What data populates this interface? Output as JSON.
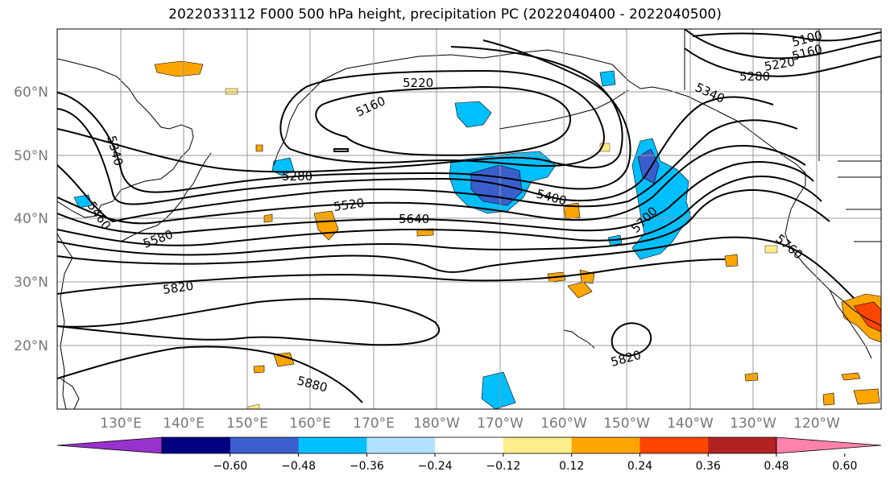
{
  "title": "2022033112 F000 500 hPa height, precipitation PC (2022040400 - 2022040500)",
  "lat_labels": [
    "60°N",
    "50°N",
    "40°N",
    "30°N",
    "20°N"
  ],
  "lon_labels": [
    "130°E",
    "140°E",
    "150°E",
    "160°E",
    "170°E",
    "180°W",
    "170°W",
    "160°W",
    "150°W",
    "140°W",
    "130°W",
    "120°W"
  ],
  "contour_labels": [
    "5100",
    "5160",
    "5160",
    "5220",
    "5220",
    "5280",
    "5280",
    "5340",
    "5340",
    "5400",
    "5460",
    "5520",
    "5580",
    "5640",
    "5700",
    "5760",
    "5820",
    "5820",
    "5880"
  ],
  "colorbar": {
    "ticks": [
      "−0.60",
      "−0.48",
      "−0.36",
      "−0.24",
      "−0.12",
      "0.12",
      "0.24",
      "0.36",
      "0.48",
      "0.60"
    ],
    "colors": [
      "#9932cc",
      "#000080",
      "#3a5fcd",
      "#00bfff",
      "#b0e2ff",
      "#ffffff",
      "#ffec8b",
      "#ffa500",
      "#ff4500",
      "#b22222",
      "#ff82ab"
    ]
  }
}
